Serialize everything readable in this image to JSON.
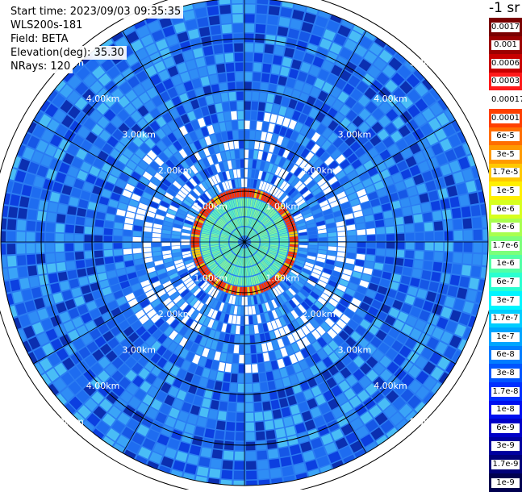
{
  "header": {
    "start_time": "Start time: 2023/09/03 09:35:35",
    "instrument": "WLS200s-181",
    "field": "Field: BETA",
    "elevation": "Elevation(deg): 35.30",
    "nrays": "NRays: 120"
  },
  "colorbar": {
    "title": "-1 sr",
    "labels": [
      "0.0017",
      "0.001",
      "0.0006",
      "0.0003",
      "0.00017",
      "0.0001",
      "6e-5",
      "3e-5",
      "1.7e-5",
      "1e-5",
      "6e-6",
      "3e-6",
      "1.7e-6",
      "1e-6",
      "6e-7",
      "3e-7",
      "1.7e-7",
      "1e-7",
      "6e-8",
      "3e-8",
      "1.7e-8",
      "1e-8",
      "6e-9",
      "3e-9",
      "1.7e-9",
      "1e-9"
    ],
    "colors": [
      "#7a0000",
      "#9c0000",
      "#c80000",
      "#ff1a1a",
      "#ffffff",
      "#ff4000",
      "#ff6e00",
      "#ff9a00",
      "#ffc800",
      "#ffef00",
      "#d7ff1f",
      "#a8ff4f",
      "#7cff7a",
      "#52ffa5",
      "#2affd0",
      "#00f5ff",
      "#00cdff",
      "#00a5ff",
      "#007dff",
      "#0055ff",
      "#0030ff",
      "#0010f0",
      "#0000c8",
      "#00009f",
      "#000078",
      "#000050"
    ]
  },
  "chart_data": {
    "type": "heatmap",
    "projection": "polar PPI",
    "field": "BETA",
    "elevation_deg": 35.3,
    "n_rays": 120,
    "range_rings": [
      "1.00km",
      "2.00km",
      "3.00km",
      "4.00km",
      "5.00km"
    ],
    "colorscale": "log, 1e-9 to 0.0017 sr-1",
    "features": "strong backscatter ring near 1 km range, weak returns beyond"
  }
}
